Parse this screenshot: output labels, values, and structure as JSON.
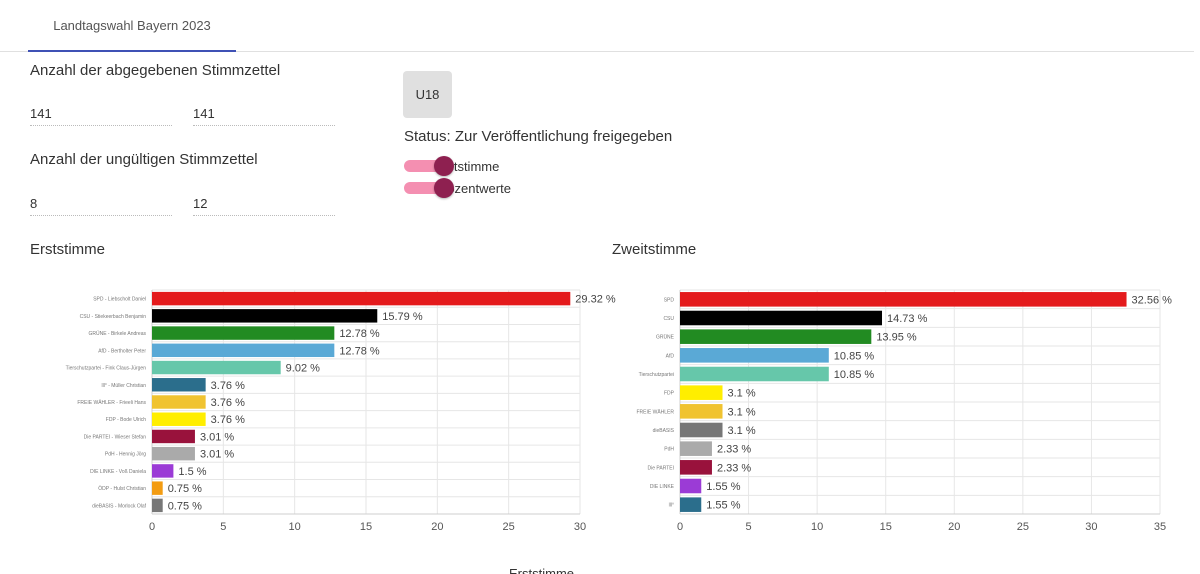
{
  "tab": {
    "label": "Landtagswahl Bayern 2023"
  },
  "stimmzettel": {
    "abgegeben_label": "Anzahl der abgegebenen Stimmzettel",
    "abgegeben_values": [
      "141",
      "141"
    ],
    "ungueltig_label": "Anzahl der ungültigen Stimmzettel",
    "ungueltig_values": [
      "8",
      "12"
    ]
  },
  "u18_button": "U18",
  "status": "Status: Zur Veröffentlichung freigegeben",
  "toggles": [
    {
      "label": "rststimme",
      "on": true
    },
    {
      "label": "rozentwerte",
      "on": true
    }
  ],
  "colors": {
    "tab_indicator": "#3f51b5",
    "toggle_track": "#f48fb1",
    "toggle_thumb": "#8e2050"
  },
  "bottom_title": "Erststimme",
  "chart_data": [
    {
      "type": "bar",
      "title": "Erststimme",
      "orientation": "horizontal",
      "xlim": [
        0,
        30
      ],
      "xticks": [
        0,
        5,
        10,
        15,
        20,
        25,
        30
      ],
      "grid": true,
      "categories": [
        "SPD - Liebscholt Daniel",
        "CSU - Stiekeerbach Benjamin",
        "GRÜNE - Birkele Andreas",
        "AfD - Bertholter Peter",
        "Tierschutzpartei - Fink Claus-Jürgen",
        "lll° - Müller Christian",
        "FREIE WÄHLER - Frieeli Hans",
        "FDP - Bode Ulrich",
        "Die PARTEI - Wieser Stefan",
        "PdH - Hennig Jörg",
        "DIE LINKE - Voß Daniela",
        "ÖDP - Hulst Christian",
        "dieBASIS - Morlock Olaf"
      ],
      "values": [
        29.32,
        15.79,
        12.78,
        12.78,
        9.02,
        3.76,
        3.76,
        3.76,
        3.01,
        3.01,
        1.5,
        0.75,
        0.75
      ],
      "value_labels": [
        "29.32 %",
        "15.79 %",
        "12.78 %",
        "12.78 %",
        "9.02 %",
        "3.76 %",
        "3.76 %",
        "3.76 %",
        "3.01 %",
        "3.01 %",
        "1.5 %",
        "0.75 %",
        "0.75 %"
      ],
      "colors": [
        "#e41a1c",
        "#000000",
        "#228b22",
        "#5aa9d6",
        "#66c7aa",
        "#2b6e8c",
        "#f0c330",
        "#ffee00",
        "#99123c",
        "#aaaaaa",
        "#9b3bd6",
        "#f39c12",
        "#777777"
      ]
    },
    {
      "type": "bar",
      "title": "Zweitstimme",
      "orientation": "horizontal",
      "xlim": [
        0,
        35
      ],
      "xticks": [
        0,
        5,
        10,
        15,
        20,
        25,
        30,
        35
      ],
      "grid": true,
      "categories": [
        "SPD",
        "CSU",
        "GRÜNE",
        "AfD",
        "Tierschutzpartei",
        "FDP",
        "FREIE WÄHLER",
        "dieBASIS",
        "PdH",
        "Die PARTEI",
        "DIE LINKE",
        "lll°"
      ],
      "values": [
        32.56,
        14.73,
        13.95,
        10.85,
        10.85,
        3.1,
        3.1,
        3.1,
        2.33,
        2.33,
        1.55,
        1.55
      ],
      "value_labels": [
        "32.56 %",
        "14.73 %",
        "13.95 %",
        "10.85 %",
        "10.85 %",
        "3.1 %",
        "3.1 %",
        "3.1 %",
        "2.33 %",
        "2.33 %",
        "1.55 %",
        "1.55 %"
      ],
      "colors": [
        "#e41a1c",
        "#000000",
        "#228b22",
        "#5aa9d6",
        "#66c7aa",
        "#ffee00",
        "#f0c330",
        "#777777",
        "#aaaaaa",
        "#99123c",
        "#9b3bd6",
        "#2b6e8c"
      ]
    }
  ]
}
